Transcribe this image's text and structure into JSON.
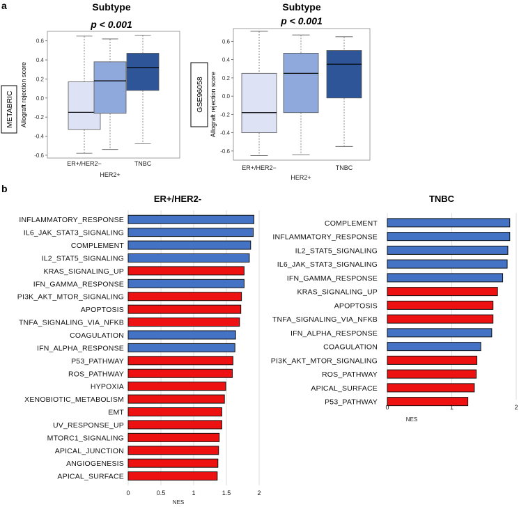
{
  "panel_a_letter": "a",
  "panel_b_letter": "b",
  "chart_data": [
    {
      "type": "box",
      "id": "box1",
      "title": "Subtype",
      "subtitle": "p < 0.001",
      "cohort_label": "METABRIC",
      "ylabel": "Allograft rejection score",
      "yticks": [
        -0.6,
        -0.4,
        -0.2,
        0.0,
        0.2,
        0.4,
        0.6
      ],
      "ytick_labels": [
        "-0.6",
        "-0.4",
        "-0.2",
        "0.0",
        "0.2",
        "0.4",
        "0.6"
      ],
      "ylim": [
        -0.63,
        0.7
      ],
      "categories": [
        "ER+/HER2−",
        "HER2+",
        "TNBC"
      ],
      "colors": [
        "#dde3f4",
        "#8fa9dc",
        "#2e5597"
      ],
      "boxes": [
        {
          "whisker_low": -0.58,
          "q1": -0.33,
          "median": -0.15,
          "q3": 0.17,
          "whisker_high": 0.65
        },
        {
          "whisker_low": -0.54,
          "q1": -0.16,
          "median": 0.18,
          "q3": 0.38,
          "whisker_high": 0.62
        },
        {
          "whisker_low": -0.48,
          "q1": 0.08,
          "median": 0.32,
          "q3": 0.47,
          "whisker_high": 0.66
        }
      ]
    },
    {
      "type": "box",
      "id": "box2",
      "title": "Subtype",
      "subtitle": "p < 0.001",
      "cohort_label": "GSE96058",
      "ylabel": "Allograft rejection score",
      "yticks": [
        -0.6,
        -0.4,
        -0.2,
        0.0,
        0.2,
        0.4,
        0.6
      ],
      "ytick_labels": [
        "-0.6",
        "-0.4",
        "-0.2",
        "0.0",
        "0.2",
        "0.4",
        "0.6"
      ],
      "ylim": [
        -0.7,
        0.74
      ],
      "categories": [
        "ER+/HER2−",
        "HER2+",
        "TNBC"
      ],
      "colors": [
        "#dde3f4",
        "#8fa9dc",
        "#2e5597"
      ],
      "boxes": [
        {
          "whisker_low": -0.65,
          "q1": -0.4,
          "median": -0.18,
          "q3": 0.25,
          "whisker_high": 0.71
        },
        {
          "whisker_low": -0.64,
          "q1": -0.18,
          "median": 0.25,
          "q3": 0.47,
          "whisker_high": 0.67
        },
        {
          "whisker_low": -0.55,
          "q1": -0.02,
          "median": 0.35,
          "q3": 0.5,
          "whisker_high": 0.65
        }
      ]
    },
    {
      "type": "bar",
      "orientation": "horizontal",
      "id": "bar1",
      "title": "ER+/HER2-",
      "xlabel": "NES",
      "xlim": [
        0,
        2
      ],
      "xticks": [
        0,
        0.5,
        1,
        1.5,
        2
      ],
      "xtick_labels": [
        "0",
        "0.5",
        "1",
        "1.5",
        "2"
      ],
      "colors": {
        "red": "#ee1111",
        "blue": "#4472c4"
      },
      "categories": [
        "INFLAMMATORY_RESPONSE",
        "IL6_JAK_STAT3_SIGNALING",
        "COMPLEMENT",
        "IL2_STAT5_SIGNALING",
        "KRAS_SIGNALING_UP",
        "IFN_GAMMA_RESPONSE",
        "PI3K_AKT_MTOR_SIGNALING",
        "APOPTOSIS",
        "TNFA_SIGNALING_VIA_NFKB",
        "COAGULATION",
        "IFN_ALPHA_RESPONSE",
        "P53_PATHWAY",
        "ROS_PATHWAY",
        "HYPOXIA",
        "XENOBIOTIC_METABOLISM",
        "EMT",
        "UV_RESPONSE_UP",
        "MTORC1_SIGNALING",
        "APICAL_JUNCTION",
        "ANGIOGENESIS",
        "APICAL_SURFACE"
      ],
      "values": [
        1.92,
        1.91,
        1.87,
        1.85,
        1.77,
        1.77,
        1.73,
        1.72,
        1.7,
        1.64,
        1.63,
        1.6,
        1.59,
        1.49,
        1.47,
        1.43,
        1.43,
        1.39,
        1.38,
        1.37,
        1.36
      ],
      "bar_colors": [
        "blue",
        "blue",
        "blue",
        "blue",
        "red",
        "blue",
        "red",
        "red",
        "red",
        "blue",
        "blue",
        "red",
        "red",
        "red",
        "red",
        "red",
        "red",
        "red",
        "red",
        "red",
        "red"
      ]
    },
    {
      "type": "bar",
      "orientation": "horizontal",
      "id": "bar2",
      "title": "TNBC",
      "xlabel": "NES",
      "xlim": [
        0,
        2
      ],
      "xticks": [
        0,
        1,
        2
      ],
      "xtick_labels": [
        "0",
        "1",
        "2"
      ],
      "colors": {
        "red": "#ee1111",
        "blue": "#4472c4"
      },
      "categories": [
        "COMPLEMENT",
        "INFLAMMATORY_RESPONSE",
        "IL2_STAT5_SIGNALING",
        "IL6_JAK_STAT3_SIGNALING",
        "IFN_GAMMA_RESPONSE",
        "KRAS_SIGNALING_UP",
        "APOPTOSIS",
        "TNFA_SIGNALING_VIA_NFKB",
        "IFN_ALPHA_RESPONSE",
        "COAGULATION",
        "PI3K_AKT_MTOR_SIGNALING",
        "ROS_PATHWAY",
        "APICAL_SURFACE",
        "P53_PATHWAY"
      ],
      "values": [
        1.9,
        1.9,
        1.87,
        1.86,
        1.79,
        1.71,
        1.64,
        1.64,
        1.62,
        1.45,
        1.39,
        1.38,
        1.35,
        1.25
      ],
      "bar_colors": [
        "blue",
        "blue",
        "blue",
        "blue",
        "blue",
        "red",
        "red",
        "red",
        "blue",
        "blue",
        "red",
        "red",
        "red",
        "red"
      ]
    }
  ]
}
